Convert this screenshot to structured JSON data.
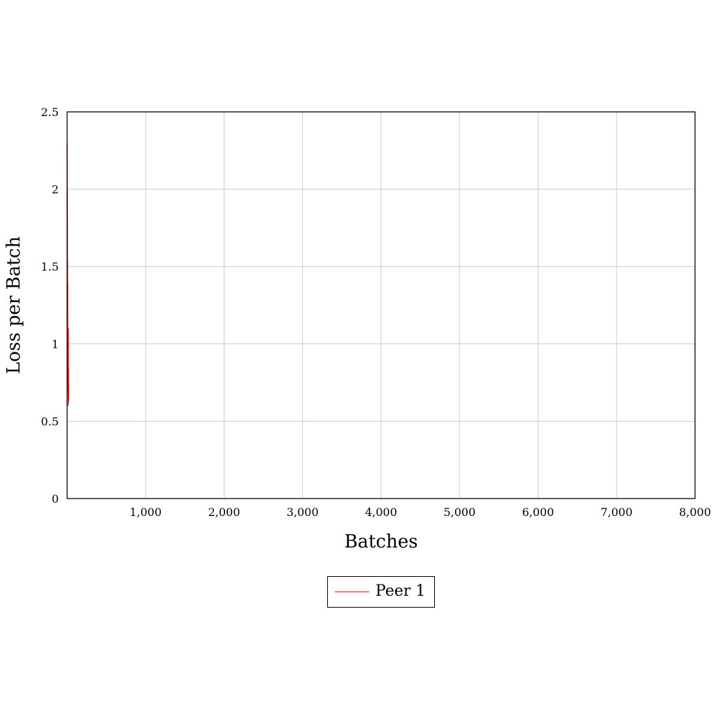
{
  "chart_data": {
    "type": "line",
    "title": "",
    "xlabel": "Batches",
    "ylabel": "Loss per Batch",
    "xlim": [
      0,
      8000
    ],
    "ylim": [
      0,
      2.5
    ],
    "xticks": [
      1000,
      2000,
      3000,
      4000,
      5000,
      6000,
      7000,
      8000
    ],
    "xtick_labels": [
      "1,000",
      "2,000",
      "3,000",
      "4,000",
      "5,000",
      "6,000",
      "7,000",
      "8,000"
    ],
    "yticks": [
      0,
      0.5,
      1,
      1.5,
      2,
      2.5
    ],
    "ytick_labels": [
      "0",
      "0.5",
      "1",
      "1.5",
      "2",
      "2.5"
    ],
    "grid": true,
    "legend_position": "bottom-center",
    "series": [
      {
        "name": "Peer 1",
        "color": "#ff0000",
        "x": [
          0,
          1,
          2,
          3,
          4,
          5,
          6,
          7,
          8,
          9,
          10,
          11,
          12,
          13,
          14,
          15,
          16,
          17,
          18,
          19,
          20
        ],
        "y": [
          2.3,
          2.12,
          1.62,
          2.0,
          1.78,
          1.2,
          1.55,
          0.95,
          1.4,
          0.8,
          1.1,
          0.68,
          1.05,
          0.6,
          0.9,
          0.65,
          1.1,
          0.62,
          0.85,
          0.63,
          0.75
        ]
      }
    ]
  }
}
